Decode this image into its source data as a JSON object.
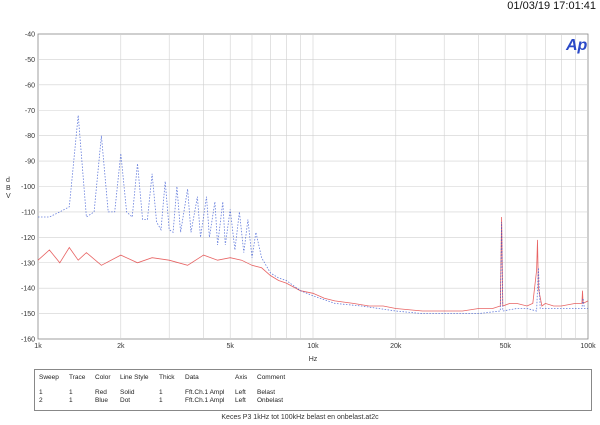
{
  "timestamp": "01/03/19 17:01:41",
  "logo": "Ap",
  "chart_data": {
    "type": "line",
    "xlabel": "Hz",
    "ylabel": "d B V",
    "xscale": "log",
    "xlim": [
      1000,
      100000
    ],
    "ylim": [
      -160,
      -40
    ],
    "grid": true,
    "x_ticks": [
      {
        "v": 1000,
        "label": "1k"
      },
      {
        "v": 2000,
        "label": "2k"
      },
      {
        "v": 5000,
        "label": "5k"
      },
      {
        "v": 10000,
        "label": "10k"
      },
      {
        "v": 20000,
        "label": "20k"
      },
      {
        "v": 50000,
        "label": "50k"
      },
      {
        "v": 100000,
        "label": "100k"
      }
    ],
    "y_ticks": [
      -40,
      -50,
      -60,
      -70,
      -80,
      -90,
      -100,
      -110,
      -120,
      -130,
      -140,
      -150,
      -160
    ],
    "series": [
      {
        "name": "Belast",
        "color": "#e03030",
        "style": "solid",
        "x": [
          1000,
          1100,
          1200,
          1300,
          1400,
          1500,
          1700,
          2000,
          2300,
          2600,
          3000,
          3500,
          4000,
          4500,
          5000,
          5500,
          6000,
          6500,
          7000,
          7500,
          8000,
          9000,
          10000,
          11000,
          12000,
          14000,
          16000,
          18000,
          20000,
          25000,
          30000,
          35000,
          40000,
          45000,
          48000,
          48500,
          49000,
          52000,
          55000,
          60000,
          63000,
          65000,
          65500,
          66000,
          68000,
          70000,
          75000,
          80000,
          90000,
          95000,
          95500,
          96000,
          100000
        ],
        "y": [
          -129,
          -125,
          -130,
          -124,
          -129,
          -126,
          -131,
          -127,
          -130,
          -128,
          -129,
          -131,
          -127,
          -129,
          -128,
          -129,
          -131,
          -132,
          -135,
          -137,
          -138,
          -141,
          -142,
          -144,
          -145,
          -146,
          -147,
          -147,
          -148,
          -149,
          -149,
          -149,
          -148,
          -148,
          -147,
          -112,
          -147,
          -146,
          -146,
          -147,
          -146,
          -133,
          -121,
          -140,
          -147,
          -146,
          -147,
          -147,
          -146,
          -146,
          -141,
          -146,
          -145
        ]
      },
      {
        "name": "Onbelast",
        "color": "#3050d0",
        "style": "dot",
        "x": [
          1000,
          1100,
          1200,
          1300,
          1400,
          1500,
          1600,
          1700,
          1800,
          1900,
          2000,
          2100,
          2200,
          2300,
          2400,
          2500,
          2600,
          2700,
          2800,
          2900,
          3000,
          3100,
          3200,
          3300,
          3500,
          3600,
          3800,
          3900,
          4100,
          4200,
          4400,
          4500,
          4700,
          4800,
          5000,
          5200,
          5400,
          5600,
          5800,
          6000,
          6200,
          6500,
          7000,
          7500,
          8000,
          9000,
          10000,
          12000,
          15000,
          20000,
          25000,
          30000,
          40000,
          48000,
          48500,
          49000,
          55000,
          60000,
          65000,
          66000,
          67000,
          70000,
          80000,
          95000,
          96000,
          97000,
          100000
        ],
        "y": [
          -112,
          -112,
          -110,
          -108,
          -72,
          -112,
          -110,
          -80,
          -110,
          -110,
          -87,
          -110,
          -112,
          -91,
          -113,
          -113,
          -95,
          -114,
          -117,
          -98,
          -117,
          -118,
          -100,
          -118,
          -101,
          -118,
          -104,
          -120,
          -104,
          -120,
          -106,
          -123,
          -106,
          -123,
          -109,
          -125,
          -110,
          -126,
          -113,
          -128,
          -118,
          -128,
          -134,
          -136,
          -137,
          -141,
          -143,
          -146,
          -147,
          -149,
          -150,
          -150,
          -150,
          -149,
          -114,
          -149,
          -148,
          -148,
          -149,
          -132,
          -148,
          -148,
          -148,
          -148,
          -144,
          -148,
          -148
        ]
      }
    ]
  },
  "legend": {
    "headers": {
      "sweep": "Sweep",
      "trace": "Trace",
      "color": "Color",
      "line_style": "Line Style",
      "thick": "Thick",
      "data": "Data",
      "axis": "Axis",
      "comment": "Comment"
    },
    "rows": [
      {
        "sweep": "1",
        "trace": "1",
        "color": "Red",
        "line_style": "Solid",
        "thick": "1",
        "data": "Fft.Ch.1 Ampl",
        "axis": "Left",
        "comment": "Belast"
      },
      {
        "sweep": "2",
        "trace": "1",
        "color": "Blue",
        "line_style": "Dot",
        "thick": "1",
        "data": "Fft.Ch.1 Ampl",
        "axis": "Left",
        "comment": "Onbelast"
      }
    ]
  },
  "footer": "Keces P3 1kHz tot 100kHz belast en onbelast.at2c"
}
